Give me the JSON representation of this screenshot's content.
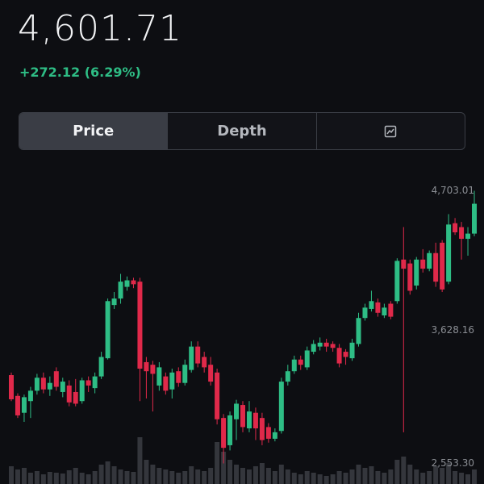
{
  "header": {
    "price": "4,601.71",
    "change": "+272.12 (6.29%)"
  },
  "tabs": [
    "Price",
    "Depth"
  ],
  "chart_data": {
    "type": "candlestick",
    "up_color": "#2ebd85",
    "down_color": "#e0294a",
    "volume_color": "#34363c",
    "ylim": [
      2553.3,
      4703.01
    ],
    "yticks": [
      {
        "value": 4703.01,
        "label": "4,703.01"
      },
      {
        "value": 3628.16,
        "label": "3,628.16"
      },
      {
        "value": 2553.3,
        "label": "2,553.30"
      }
    ],
    "open": [
      3280,
      3120,
      2990,
      3080,
      3160,
      3260,
      3170,
      3310,
      3150,
      3200,
      3150,
      3080,
      3240,
      3180,
      3270,
      3410,
      3820,
      3870,
      3960,
      4010,
      4000,
      3380,
      3360,
      3200,
      3270,
      3170,
      3310,
      3220,
      3320,
      3500,
      3420,
      3360,
      3300,
      2950,
      2740,
      2940,
      3050,
      2870,
      2990,
      2950,
      2880,
      2790,
      2850,
      3230,
      3310,
      3400,
      3340,
      3460,
      3500,
      3530,
      3520,
      3490,
      3460,
      3410,
      3520,
      3720,
      3790,
      3840,
      3740,
      3830,
      3850,
      4170,
      4140,
      3970,
      4170,
      4100,
      4220,
      4300,
      4000,
      4450,
      4420,
      4330,
      4370
    ],
    "high": [
      3300,
      3140,
      3130,
      3190,
      3290,
      3300,
      3270,
      3340,
      3260,
      3240,
      3250,
      3260,
      3270,
      3300,
      3460,
      3870,
      3920,
      4060,
      4040,
      4030,
      4030,
      3420,
      3390,
      3380,
      3300,
      3330,
      3340,
      3400,
      3540,
      3540,
      3460,
      3420,
      3330,
      2980,
      3000,
      3090,
      3080,
      3080,
      3030,
      2990,
      2910,
      2870,
      3260,
      3360,
      3430,
      3430,
      3500,
      3550,
      3570,
      3560,
      3540,
      3520,
      3480,
      3560,
      3760,
      3830,
      3930,
      3870,
      3830,
      3850,
      4180,
      4420,
      4170,
      4190,
      4250,
      4240,
      4300,
      4320,
      4520,
      4490,
      4460,
      4420,
      4700
    ],
    "low": [
      3080,
      2950,
      2920,
      2950,
      3130,
      3140,
      3120,
      3160,
      3110,
      3040,
      3040,
      3060,
      3150,
      3140,
      3250,
      3400,
      3790,
      3830,
      3930,
      3950,
      3080,
      3100,
      3000,
      3160,
      3130,
      3100,
      3190,
      3200,
      3300,
      3340,
      3300,
      3200,
      2900,
      2600,
      2700,
      2780,
      2840,
      2840,
      2780,
      2740,
      2760,
      2770,
      2830,
      3200,
      3290,
      3320,
      3320,
      3440,
      3470,
      3460,
      3460,
      3340,
      3360,
      3390,
      3500,
      3700,
      3770,
      3730,
      3720,
      3710,
      3830,
      2840,
      3900,
      3940,
      4070,
      4080,
      3960,
      3920,
      3980,
      4360,
      4170,
      4200,
      4350
    ],
    "close": [
      3094,
      2970,
      3110,
      3160,
      3260,
      3170,
      3220,
      3190,
      3230,
      3070,
      3060,
      3240,
      3200,
      3270,
      3420,
      3850,
      3870,
      4000,
      4010,
      3980,
      3330,
      3310,
      3290,
      3340,
      3160,
      3300,
      3220,
      3360,
      3500,
      3370,
      3340,
      3230,
      2940,
      2720,
      2970,
      3060,
      2880,
      3000,
      2870,
      2780,
      2790,
      2840,
      3230,
      3310,
      3400,
      3360,
      3470,
      3520,
      3530,
      3500,
      3490,
      3370,
      3420,
      3530,
      3720,
      3800,
      3850,
      3760,
      3800,
      3730,
      4160,
      4100,
      3930,
      4170,
      4100,
      4220,
      4000,
      3940,
      4440,
      4380,
      4330,
      4370,
      4600
    ],
    "volume": [
      22,
      18,
      20,
      14,
      16,
      12,
      15,
      14,
      13,
      17,
      20,
      14,
      12,
      16,
      24,
      28,
      22,
      18,
      16,
      15,
      58,
      30,
      24,
      20,
      18,
      16,
      14,
      16,
      22,
      18,
      16,
      20,
      52,
      40,
      30,
      24,
      20,
      18,
      22,
      26,
      20,
      16,
      24,
      18,
      14,
      12,
      16,
      14,
      12,
      10,
      12,
      16,
      14,
      18,
      24,
      20,
      22,
      16,
      14,
      18,
      30,
      34,
      24,
      18,
      14,
      16,
      22,
      20,
      26,
      16,
      14,
      12,
      18
    ]
  }
}
